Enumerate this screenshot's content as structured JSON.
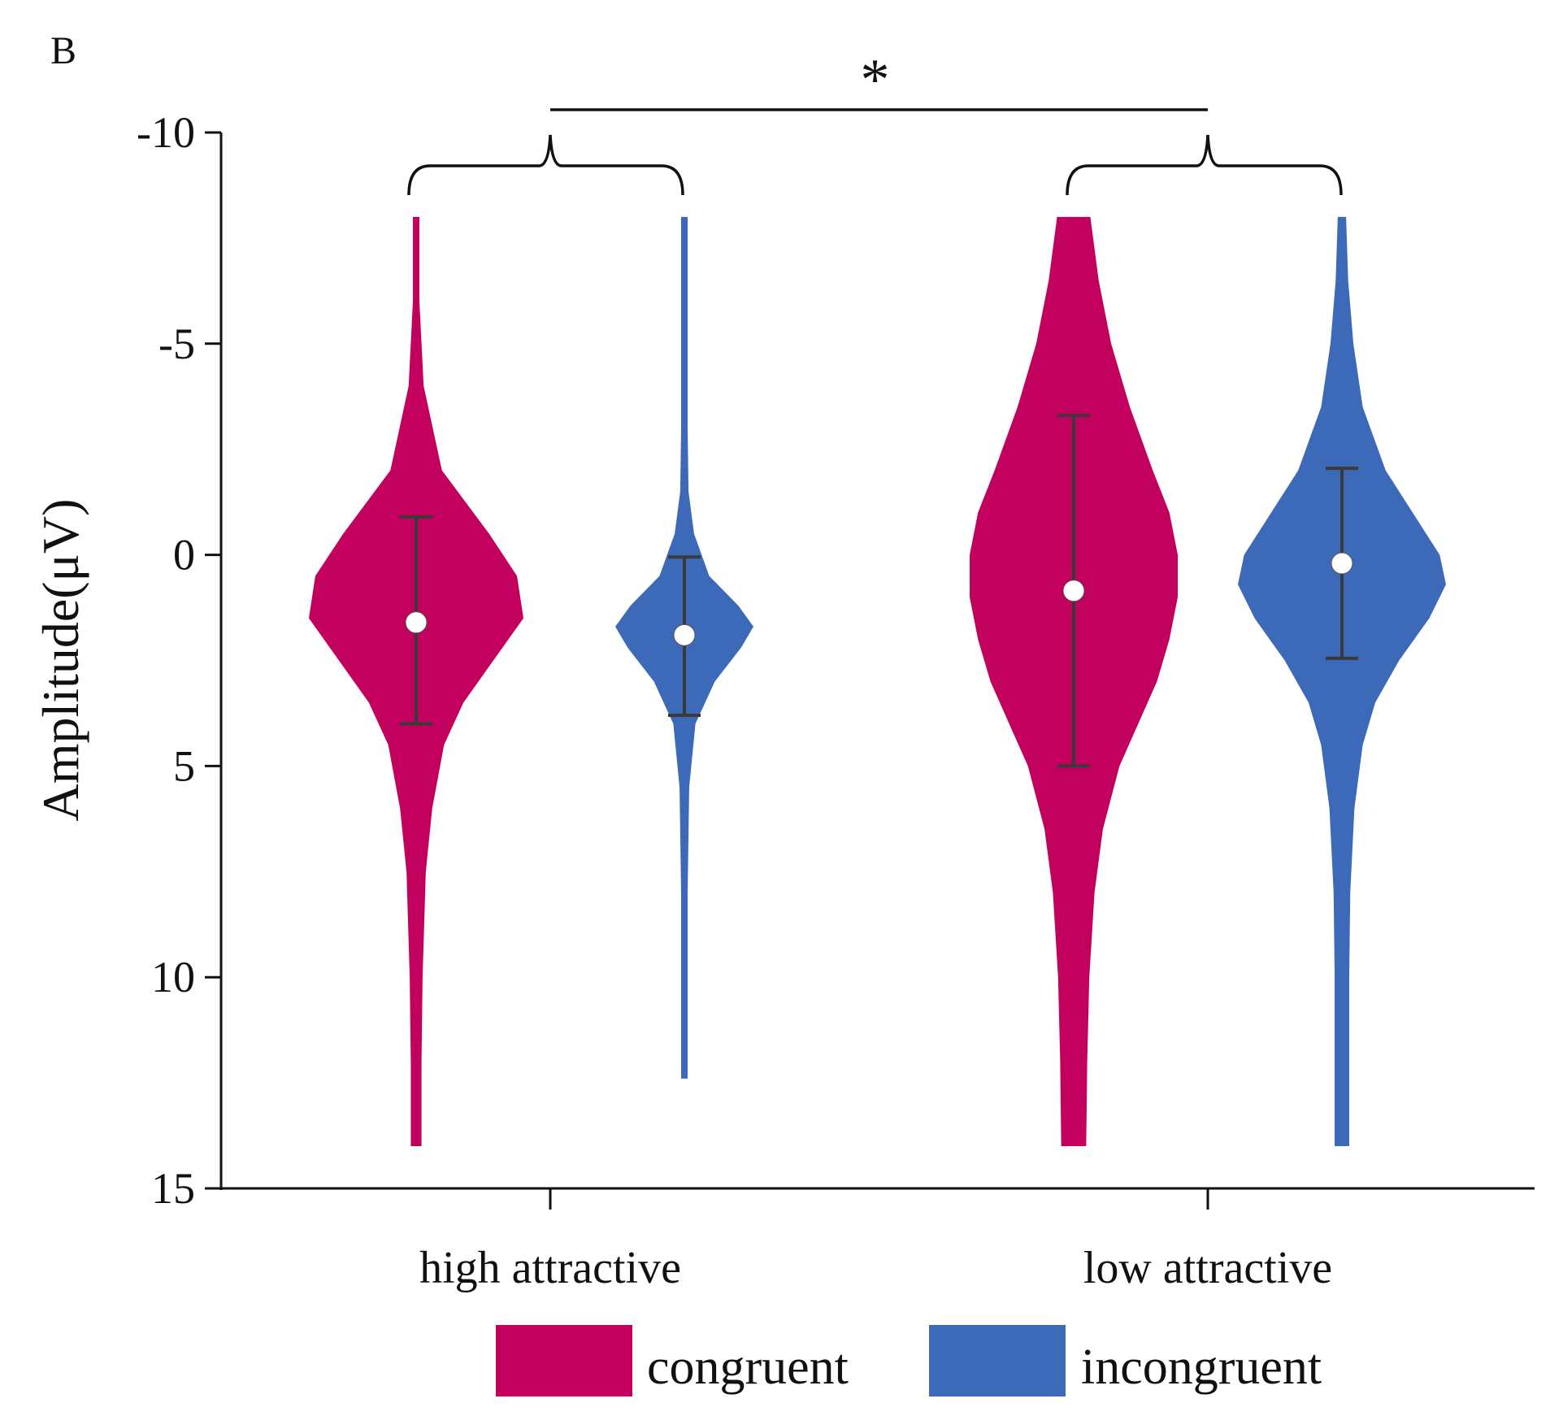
{
  "chart_data": {
    "type": "violin",
    "panel_label": "B",
    "title": "",
    "xlabel": "",
    "ylabel": "Amplitude(μV)",
    "y_inverted": true,
    "ylim": [
      -10,
      15
    ],
    "yticks": [
      -10,
      -5,
      0,
      5,
      10,
      15
    ],
    "ytick_labels": [
      "-10",
      "-5",
      "0",
      "5",
      "10",
      "15"
    ],
    "categories": [
      "high attractive",
      "low attractive"
    ],
    "series": [
      {
        "name": "congruent",
        "color": "#c2005e",
        "violins": [
          {
            "category": "high attractive",
            "mean": 1.6,
            "err_low": -0.9,
            "err_high": 4.0,
            "range": [
              -8.0,
              14.0
            ],
            "density": [
              [
                -8.0,
                0.01
              ],
              [
                -6.0,
                0.03
              ],
              [
                -4.0,
                0.07
              ],
              [
                -2.0,
                0.24
              ],
              [
                -0.5,
                0.68
              ],
              [
                0.5,
                0.94
              ],
              [
                1.5,
                1.0
              ],
              [
                2.5,
                0.72
              ],
              [
                3.5,
                0.44
              ],
              [
                4.5,
                0.26
              ],
              [
                6.0,
                0.15
              ],
              [
                7.5,
                0.09
              ],
              [
                10.0,
                0.06
              ],
              [
                12.0,
                0.05
              ],
              [
                14.0,
                0.05
              ]
            ]
          },
          {
            "category": "low attractive",
            "mean": 0.85,
            "err_low": -3.3,
            "err_high": 5.0,
            "range": [
              -8.0,
              14.0
            ],
            "density": [
              [
                -8.0,
                0.16
              ],
              [
                -6.5,
                0.24
              ],
              [
                -5.0,
                0.36
              ],
              [
                -3.5,
                0.54
              ],
              [
                -2.0,
                0.76
              ],
              [
                -1.0,
                0.92
              ],
              [
                0.0,
                1.0
              ],
              [
                1.0,
                1.0
              ],
              [
                2.0,
                0.92
              ],
              [
                3.0,
                0.8
              ],
              [
                4.0,
                0.62
              ],
              [
                5.0,
                0.44
              ],
              [
                6.5,
                0.28
              ],
              [
                8.0,
                0.2
              ],
              [
                10.0,
                0.15
              ],
              [
                12.0,
                0.13
              ],
              [
                14.0,
                0.12
              ]
            ]
          }
        ]
      },
      {
        "name": "incongruent",
        "color": "#3d69b9",
        "violins": [
          {
            "category": "high attractive",
            "mean": 1.9,
            "err_low": 0.05,
            "err_high": 3.8,
            "range": [
              -8.0,
              12.4
            ],
            "density": [
              [
                -8.0,
                0.01
              ],
              [
                -5.0,
                0.02
              ],
              [
                -3.0,
                0.03
              ],
              [
                -1.5,
                0.06
              ],
              [
                -0.5,
                0.14
              ],
              [
                0.5,
                0.36
              ],
              [
                1.2,
                0.78
              ],
              [
                1.7,
                1.0
              ],
              [
                2.2,
                0.82
              ],
              [
                3.0,
                0.44
              ],
              [
                4.0,
                0.16
              ],
              [
                5.5,
                0.07
              ],
              [
                8.0,
                0.04
              ],
              [
                10.5,
                0.03
              ],
              [
                12.4,
                0.02
              ]
            ]
          },
          {
            "category": "low attractive",
            "mean": 0.2,
            "err_low": -2.05,
            "err_high": 2.45,
            "range": [
              -8.0,
              14.0
            ],
            "density": [
              [
                -8.0,
                0.04
              ],
              [
                -6.5,
                0.06
              ],
              [
                -5.0,
                0.11
              ],
              [
                -3.5,
                0.2
              ],
              [
                -2.0,
                0.42
              ],
              [
                -1.0,
                0.68
              ],
              [
                0.0,
                0.94
              ],
              [
                0.7,
                1.0
              ],
              [
                1.5,
                0.84
              ],
              [
                2.5,
                0.55
              ],
              [
                3.5,
                0.32
              ],
              [
                4.5,
                0.2
              ],
              [
                6.0,
                0.12
              ],
              [
                8.0,
                0.08
              ],
              [
                10.0,
                0.07
              ],
              [
                12.0,
                0.07
              ],
              [
                14.0,
                0.07
              ]
            ]
          }
        ]
      }
    ],
    "comparison": {
      "between": [
        "high attractive",
        "low attractive"
      ],
      "label": "*"
    },
    "legend": {
      "placement": "bottom",
      "entries": [
        "congruent",
        "incongruent"
      ]
    },
    "grid": false
  }
}
